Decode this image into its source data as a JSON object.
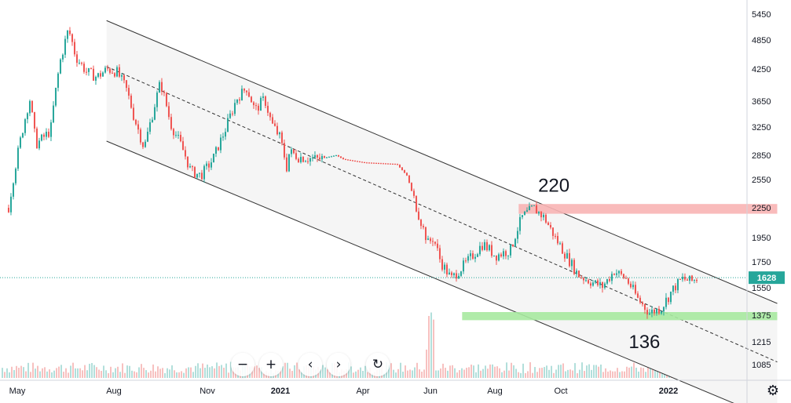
{
  "chart_data": {
    "type": "candlestick",
    "price_axis": {
      "ticks": [
        "5450",
        "4850",
        "4250",
        "3650",
        "3250",
        "2850",
        "2550",
        "2250",
        "1950",
        "1750",
        "1550",
        "1375",
        "1215",
        "1085"
      ],
      "scale": "log"
    },
    "time_axis": {
      "ticks": [
        {
          "label": "May",
          "date": "2020-05-01",
          "bold": false
        },
        {
          "label": "Aug",
          "date": "2020-08-01",
          "bold": false
        },
        {
          "label": "Nov",
          "date": "2020-11-01",
          "bold": false
        },
        {
          "label": "2021",
          "date": "2021-01-01",
          "bold": true
        },
        {
          "label": "Apr",
          "date": "2021-04-01",
          "bold": false
        },
        {
          "label": "Jun",
          "date": "2021-06-01",
          "bold": false
        },
        {
          "label": "Aug",
          "date": "2021-08-01",
          "bold": false
        },
        {
          "label": "Oct",
          "date": "2021-10-01",
          "bold": false
        },
        {
          "label": "2022",
          "date": "2022-01-01",
          "bold": true
        }
      ]
    },
    "last_price": {
      "value": "1628",
      "color": "#26a69a"
    },
    "price_series": {
      "name": "",
      "up_color": "#26a69a",
      "down_color": "#ef5350",
      "points": [
        [
          "2020-04-22",
          2250
        ],
        [
          "2020-05-01",
          2900
        ],
        [
          "2020-05-12",
          3700
        ],
        [
          "2020-05-18",
          3000
        ],
        [
          "2020-06-01",
          3200
        ],
        [
          "2020-06-10",
          4400
        ],
        [
          "2020-06-18",
          5100
        ],
        [
          "2020-06-25",
          4500
        ],
        [
          "2020-07-05",
          4200
        ],
        [
          "2020-07-15",
          4100
        ],
        [
          "2020-07-25",
          4250
        ],
        [
          "2020-08-03",
          4200
        ],
        [
          "2020-08-12",
          3900
        ],
        [
          "2020-08-20",
          3400
        ],
        [
          "2020-08-30",
          2950
        ],
        [
          "2020-09-08",
          3500
        ],
        [
          "2020-09-15",
          4000
        ],
        [
          "2020-09-25",
          3300
        ],
        [
          "2020-10-05",
          3000
        ],
        [
          "2020-10-15",
          2650
        ],
        [
          "2020-10-25",
          2600
        ],
        [
          "2020-11-05",
          2800
        ],
        [
          "2020-11-15",
          3200
        ],
        [
          "2020-11-25",
          3700
        ],
        [
          "2020-12-03",
          3900
        ],
        [
          "2020-12-10",
          3500
        ],
        [
          "2020-12-18",
          3700
        ],
        [
          "2020-12-24",
          3300
        ],
        [
          "2020-12-31",
          3100
        ],
        [
          "2021-01-07",
          2700
        ],
        [
          "2021-01-10",
          2900
        ],
        [
          "2021-01-20",
          2830
        ],
        [
          "2021-02-10",
          2800
        ],
        [
          "2021-03-02",
          2850
        ],
        [
          "2021-03-10",
          2800
        ],
        [
          "2021-04-01",
          2760
        ],
        [
          "2021-05-01",
          2740
        ],
        [
          "2021-05-10",
          2600
        ],
        [
          "2021-05-20",
          2200
        ],
        [
          "2021-05-29",
          1900
        ],
        [
          "2021-06-03",
          1950
        ],
        [
          "2021-06-10",
          1750
        ],
        [
          "2021-06-20",
          1620
        ],
        [
          "2021-07-05",
          1750
        ],
        [
          "2021-07-20",
          1900
        ],
        [
          "2021-08-01",
          1800
        ],
        [
          "2021-08-15",
          1850
        ],
        [
          "2021-08-25",
          2150
        ],
        [
          "2021-09-05",
          2250
        ],
        [
          "2021-09-15",
          2150
        ],
        [
          "2021-09-25",
          1950
        ],
        [
          "2021-10-05",
          1800
        ],
        [
          "2021-10-15",
          1650
        ],
        [
          "2021-10-25",
          1600
        ],
        [
          "2021-11-05",
          1560
        ],
        [
          "2021-11-15",
          1680
        ],
        [
          "2021-11-25",
          1620
        ],
        [
          "2021-12-05",
          1480
        ],
        [
          "2021-12-15",
          1390
        ],
        [
          "2021-12-25",
          1420
        ],
        [
          "2022-01-05",
          1550
        ],
        [
          "2022-01-12",
          1620
        ],
        [
          "2022-01-20",
          1600
        ],
        [
          "2022-01-26",
          1628
        ]
      ]
    },
    "annotations": [
      {
        "text": "220",
        "date": "2021-09-10",
        "price": 2420
      },
      {
        "text": "136",
        "date": "2021-11-28",
        "price": 1180
      }
    ],
    "zones": [
      {
        "color": "#f8b4b4",
        "from": "2021-08-23",
        "to": "2022-04-04",
        "price_low": 2190,
        "price_high": 2290
      },
      {
        "color": "#a7e9a0",
        "from": "2021-07-01",
        "to": "2022-04-04",
        "price_low": 1345,
        "price_high": 1395
      }
    ],
    "channel": {
      "upper": [
        [
          "2020-07-25",
          5300
        ],
        [
          "2022-04-04",
          1450
        ]
      ],
      "middle": [
        [
          "2020-07-25",
          4300
        ],
        [
          "2022-04-04",
          1100
        ]
      ],
      "lower": [
        [
          "2020-07-25",
          3050
        ],
        [
          "2022-04-04",
          760
        ]
      ]
    },
    "volume_color_up": "#b2dfdb",
    "volume_color_down": "#f7c1c0"
  },
  "toolbar": {
    "zoom_out": "−",
    "zoom_in": "+",
    "scroll_left": "‹",
    "scroll_right": "›",
    "reset": "↻"
  },
  "settings_icon": "⚙"
}
